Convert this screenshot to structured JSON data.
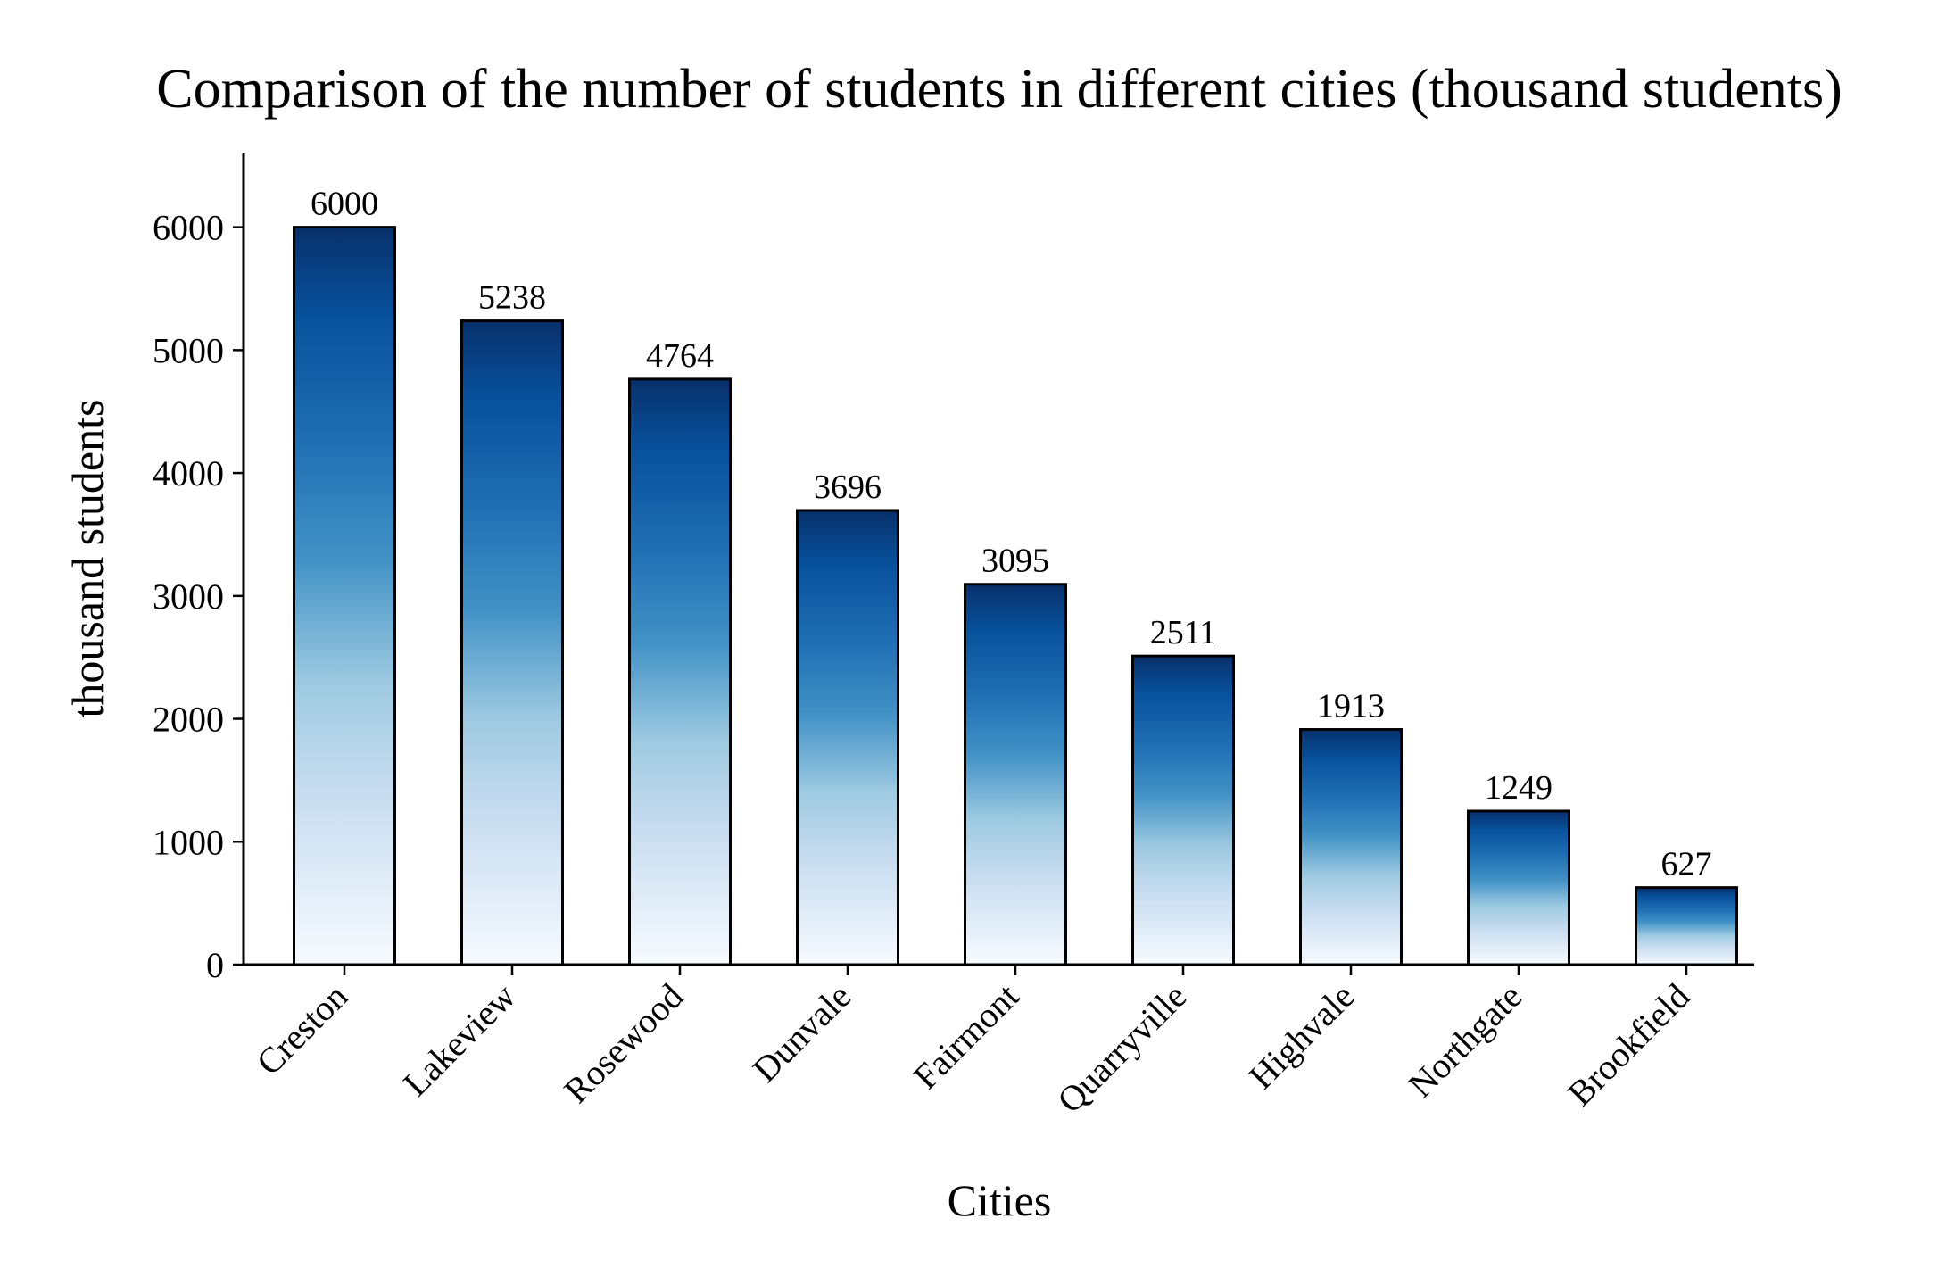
{
  "chart_data": {
    "type": "bar",
    "title": "Comparison of the number of students in different cities (thousand students)",
    "xlabel": "Cities",
    "ylabel": "thousand students",
    "categories": [
      "Creston",
      "Lakeview",
      "Rosewood",
      "Dunvale",
      "Fairmont",
      "Quarryville",
      "Highvale",
      "Northgate",
      "Brookfield"
    ],
    "values": [
      6000,
      5238,
      4764,
      3696,
      3095,
      2511,
      1913,
      1249,
      627
    ],
    "data_labels": [
      "6000",
      "5238",
      "4764",
      "3696",
      "3095",
      "2511",
      "1913",
      "1249",
      "627"
    ],
    "ylim": [
      0,
      6600
    ],
    "yticks": [
      0,
      1000,
      2000,
      3000,
      4000,
      5000,
      6000
    ],
    "ytick_labels": [
      "0",
      "1000",
      "2000",
      "3000",
      "4000",
      "5000",
      "6000"
    ],
    "grid": false,
    "legend": "none",
    "colors": {
      "gradient_top": "#08306b",
      "gradient_upper": "#08519c",
      "gradient_mid": "#2171b5",
      "gradient_mid2": "#4292c6",
      "gradient_low": "#9ecae1",
      "gradient_lower": "#c6dbef",
      "gradient_bottom": "#f7fbff",
      "edge": "#000000"
    }
  }
}
